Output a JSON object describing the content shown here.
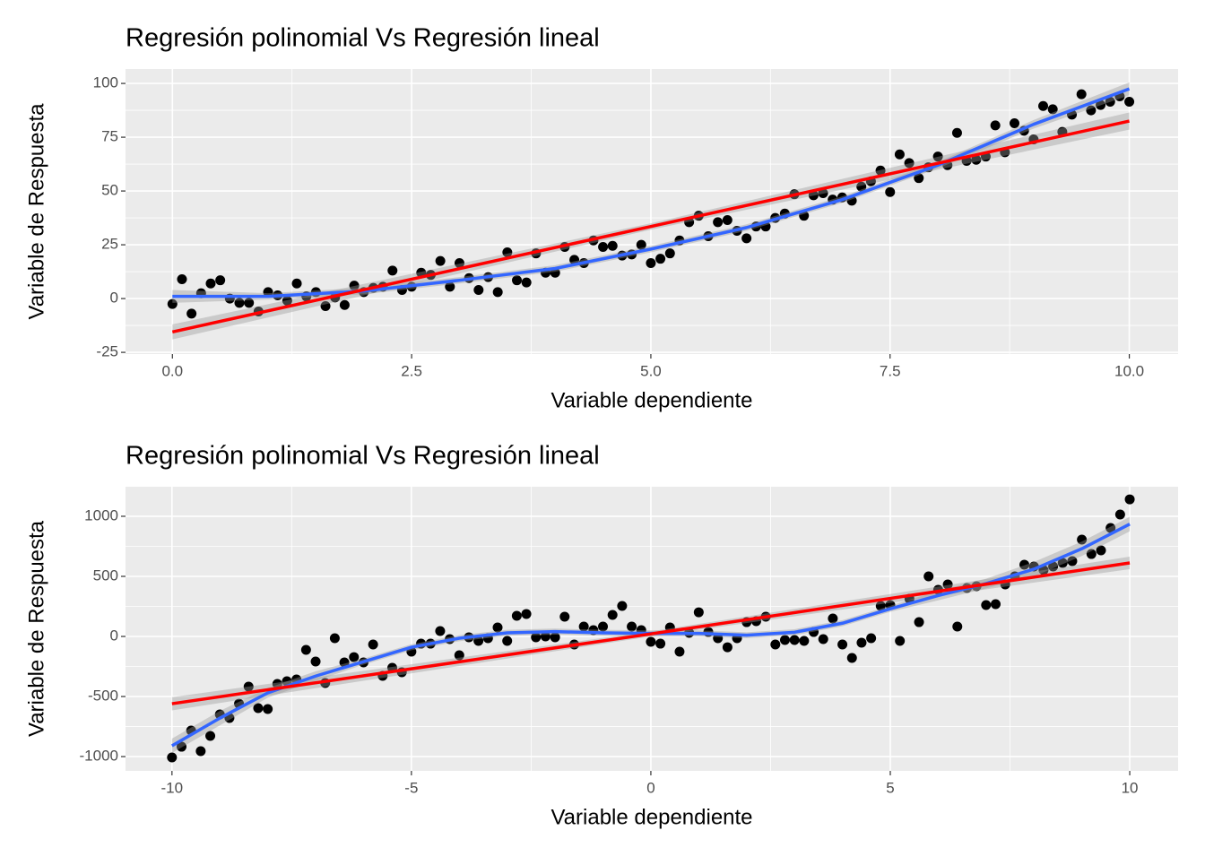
{
  "chart_data": [
    {
      "type": "scatter",
      "title": "Regresión polinomial Vs Regresión lineal",
      "x_label": "Variable dependiente",
      "y_label": "Variable de Respuesta",
      "xlim": [
        -0.49,
        10.51
      ],
      "ylim": [
        -25.8,
        106.7
      ],
      "xticks": [
        {
          "value": 0,
          "label": "0.0"
        },
        {
          "value": 2.5,
          "label": "2.5"
        },
        {
          "value": 5,
          "label": "5.0"
        },
        {
          "value": 7.5,
          "label": "7.5"
        },
        {
          "value": 10,
          "label": "10.0"
        }
      ],
      "yticks": [
        -25,
        0,
        25,
        50,
        75,
        100
      ],
      "grid": true,
      "background": "#ebebeb",
      "points": {
        "color": "#000000",
        "x": [
          0,
          0.1,
          0.2,
          0.3,
          0.4,
          0.5,
          0.6,
          0.7,
          0.8,
          0.9,
          1,
          1.1,
          1.2,
          1.3,
          1.4,
          1.5,
          1.6,
          1.7,
          1.8,
          1.9,
          2,
          2.1,
          2.2,
          2.3,
          2.4,
          2.5,
          2.6,
          2.7,
          2.8,
          2.9,
          3,
          3.1,
          3.2,
          3.3,
          3.4,
          3.5,
          3.6,
          3.7,
          3.8,
          3.9,
          4,
          4.1,
          4.2,
          4.3,
          4.4,
          4.5,
          4.6,
          4.7,
          4.8,
          4.9,
          5,
          5.1,
          5.2,
          5.3,
          5.4,
          5.5,
          5.6,
          5.7,
          5.8,
          5.9,
          6,
          6.1,
          6.2,
          6.3,
          6.4,
          6.5,
          6.6,
          6.7,
          6.8,
          6.9,
          7,
          7.1,
          7.2,
          7.3,
          7.4,
          7.5,
          7.6,
          7.7,
          7.8,
          7.9,
          8,
          8.1,
          8.2,
          8.3,
          8.4,
          8.5,
          8.6,
          8.7,
          8.8,
          8.9,
          9,
          9.1,
          9.2,
          9.3,
          9.4,
          9.5,
          9.6,
          9.7,
          9.8,
          9.9,
          10
        ],
        "y": [
          -2.5,
          9,
          -7,
          2.5,
          7,
          8.5,
          0,
          -2,
          -2,
          -6,
          3,
          1.5,
          -1,
          7,
          1,
          3,
          -3.5,
          0.5,
          -3,
          6,
          3,
          5,
          5.5,
          13,
          4,
          5.5,
          12,
          11,
          17.5,
          5.5,
          16.5,
          9.5,
          4,
          10,
          3,
          21.5,
          8.5,
          7.5,
          21,
          12,
          12,
          24,
          18,
          16.5,
          27,
          24,
          24.5,
          20,
          20.5,
          25,
          16.5,
          18.5,
          21,
          27,
          35.5,
          38.5,
          29,
          35.5,
          36.5,
          31.5,
          28,
          33.5,
          33.5,
          37.5,
          39.5,
          48.5,
          38.5,
          48,
          49,
          46,
          47,
          45.5,
          52,
          54.5,
          59.5,
          49.5,
          67,
          63,
          56,
          61,
          66,
          62,
          77,
          64,
          64.5,
          66,
          80.5,
          68,
          81.5,
          78,
          74,
          89.5,
          88,
          77.5,
          85.5,
          95,
          87.5,
          90,
          91.5,
          94,
          91.5
        ]
      },
      "fits": [
        {
          "color": "#3366ff",
          "band_color": "#999999",
          "x": [
            0,
            1,
            2,
            3,
            4,
            5,
            6,
            7,
            8,
            9,
            10
          ],
          "y": [
            1,
            1,
            3.5,
            8.5,
            14,
            23,
            33,
            46,
            62,
            81,
            97.5
          ],
          "lower": [
            -2,
            -0.5,
            2,
            7,
            12.5,
            21.5,
            31.5,
            44.5,
            60.5,
            79,
            94.5
          ],
          "upper": [
            4,
            2.5,
            5,
            10,
            15.5,
            24.5,
            34.5,
            47.5,
            63.5,
            83,
            100.5
          ]
        },
        {
          "color": "#ff0000",
          "band_color": "#999999",
          "x": [
            0,
            5,
            10
          ],
          "y": [
            -15.5,
            33.5,
            82.5
          ],
          "lower": [
            -19,
            32,
            78.5
          ],
          "upper": [
            -12,
            35,
            86.5
          ]
        }
      ]
    },
    {
      "type": "scatter",
      "title": "Regresión polinomial Vs Regresión lineal",
      "x_label": "Variable dependiente",
      "y_label": "Variable de Respuesta",
      "xlim": [
        -10.97,
        11.01
      ],
      "ylim": [
        -1119,
        1246
      ],
      "xticks": [
        -10,
        -5,
        0,
        5,
        10
      ],
      "yticks": [
        -1000,
        -500,
        0,
        500,
        1000
      ],
      "grid": true,
      "background": "#ebebeb",
      "points": {
        "color": "#000000",
        "x": [
          -10,
          -9.8,
          -9.6,
          -9.4,
          -9.2,
          -9,
          -8.8,
          -8.6,
          -8.4,
          -8.2,
          -8,
          -7.8,
          -7.6,
          -7.4,
          -7.2,
          -7,
          -6.8,
          -6.6,
          -6.4,
          -6.2,
          -6,
          -5.8,
          -5.6,
          -5.4,
          -5.2,
          -5,
          -4.8,
          -4.6,
          -4.4,
          -4.2,
          -4,
          -3.8,
          -3.6,
          -3.4,
          -3.2,
          -3,
          -2.8,
          -2.6,
          -2.4,
          -2.2,
          -2,
          -1.8,
          -1.6,
          -1.4,
          -1.2,
          -1,
          -0.8,
          -0.6,
          -0.4,
          -0.2,
          0,
          0.2,
          0.4,
          0.6,
          0.8,
          1,
          1.2,
          1.4,
          1.6,
          1.8,
          2,
          2.2,
          2.4,
          2.6,
          2.8,
          3,
          3.2,
          3.4,
          3.6,
          3.8,
          4,
          4.2,
          4.4,
          4.6,
          4.8,
          5,
          5.2,
          5.4,
          5.6,
          5.8,
          6,
          6.2,
          6.4,
          6.6,
          6.8,
          7,
          7.2,
          7.4,
          7.6,
          7.8,
          8,
          8.2,
          8.4,
          8.6,
          8.8,
          9,
          9.2,
          9.4,
          9.6,
          9.8,
          10
        ],
        "y": [
          -1007,
          -918,
          -783,
          -955,
          -828,
          -649,
          -679,
          -560,
          -418,
          -597,
          -604,
          -395,
          -373,
          -358,
          -112,
          -209,
          -388,
          -15,
          -216,
          -172,
          -216,
          -67,
          -328,
          -261,
          -298,
          -127,
          -60,
          -60,
          45,
          -22,
          -157,
          -7,
          -37,
          -15,
          75,
          -37,
          172,
          187,
          -7,
          0,
          -7,
          164,
          -67,
          82,
          52,
          82,
          179,
          254,
          82,
          52,
          -45,
          -60,
          75,
          -127,
          30,
          201,
          37,
          -15,
          -90,
          -15,
          119,
          127,
          164,
          -67,
          -30,
          -30,
          -37,
          37,
          -22,
          149,
          -67,
          -179,
          -52,
          -15,
          254,
          261,
          -37,
          313,
          119,
          500,
          388,
          433,
          82,
          403,
          418,
          261,
          269,
          433,
          500,
          597,
          582,
          552,
          582,
          612,
          627,
          806,
          686,
          716,
          903,
          1015,
          1141
        ]
      },
      "fits": [
        {
          "color": "#3366ff",
          "band_color": "#999999",
          "x": [
            -10,
            -9,
            -8,
            -7,
            -6,
            -5,
            -4,
            -3,
            -2,
            -1,
            0,
            1,
            2,
            3,
            4,
            5,
            6,
            7,
            8,
            9,
            10
          ],
          "y": [
            -910,
            -680,
            -470,
            -330,
            -210,
            -90,
            -15,
            30,
            40,
            30,
            25,
            25,
            10,
            35,
            110,
            230,
            340,
            440,
            560,
            730,
            935
          ],
          "lower": [
            -970,
            -740,
            -510,
            -370,
            -235,
            -115,
            -40,
            5,
            15,
            5,
            0,
            0,
            -15,
            10,
            85,
            205,
            300,
            400,
            500,
            670,
            875
          ],
          "upper": [
            -850,
            -620,
            -430,
            -290,
            -185,
            -65,
            10,
            55,
            65,
            55,
            50,
            50,
            35,
            60,
            135,
            255,
            380,
            480,
            620,
            790,
            995
          ]
        },
        {
          "color": "#ff0000",
          "band_color": "#999999",
          "x": [
            -10,
            0,
            10
          ],
          "y": [
            -560,
            21,
            612
          ],
          "lower": [
            -615,
            0,
            560
          ],
          "upper": [
            -505,
            42,
            664
          ]
        }
      ]
    }
  ]
}
